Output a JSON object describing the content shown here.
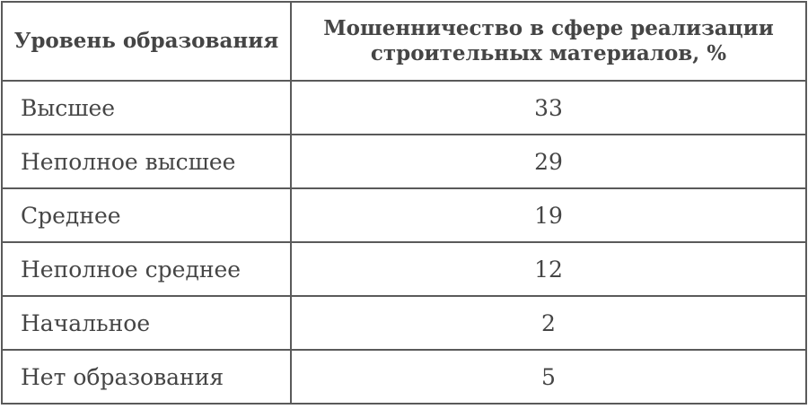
{
  "table": {
    "headers": [
      "Уровень образования",
      "Мошенничество в сфере реализации строительных материалов, %"
    ],
    "rows": [
      {
        "level": "Высшее",
        "value": "33"
      },
      {
        "level": "Неполное высшее",
        "value": "29"
      },
      {
        "level": "Среднее",
        "value": "19"
      },
      {
        "level": "Неполное среднее",
        "value": "12"
      },
      {
        "level": "Начальное",
        "value": "2"
      },
      {
        "level": "Нет образования",
        "value": "5"
      }
    ]
  }
}
